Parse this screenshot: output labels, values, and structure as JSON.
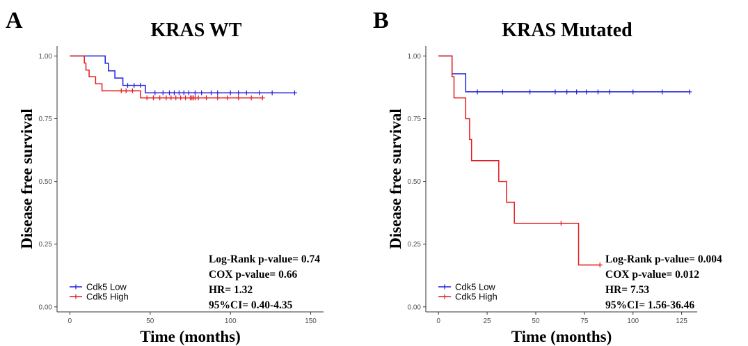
{
  "colors": {
    "low": "#1f1fdd",
    "high": "#e41a1c",
    "axis": "#333333",
    "text": "#000000"
  },
  "chart_data": [
    {
      "type": "line",
      "subtype": "kaplan-meier step",
      "panel_letter": "A",
      "title": "KRAS WT",
      "xlabel": "Time (months)",
      "ylabel": "Disease free survival",
      "xlim": [
        -8,
        158
      ],
      "ylim": [
        -0.02,
        1.04
      ],
      "x_ticks": [
        0,
        50,
        100,
        150
      ],
      "y_ticks": [
        0.0,
        0.25,
        0.5,
        0.75,
        1.0
      ],
      "y_tick_labels": [
        "0.00",
        "0.25",
        "0.50",
        "0.75",
        "1.00"
      ],
      "grid": false,
      "legend_position": "bottom-left",
      "stats": [
        "Log-Rank p-value= 0.74",
        "COX p-value= 0.66",
        "HR= 1.32",
        "95%CI= 0.40-4.35"
      ],
      "series": [
        {
          "name": "Cdk5 Low",
          "color": "#1f1fdd",
          "steps": [
            [
              0,
              1.0
            ],
            [
              22,
              1.0
            ],
            [
              22,
              0.971
            ],
            [
              24,
              0.971
            ],
            [
              24,
              0.941
            ],
            [
              28,
              0.941
            ],
            [
              28,
              0.912
            ],
            [
              33,
              0.912
            ],
            [
              33,
              0.883
            ],
            [
              47,
              0.883
            ],
            [
              47,
              0.853
            ],
            [
              140,
              0.853
            ]
          ],
          "censors": [
            [
              36,
              0.883
            ],
            [
              40,
              0.883
            ],
            [
              44,
              0.883
            ],
            [
              53,
              0.853
            ],
            [
              58,
              0.853
            ],
            [
              62,
              0.853
            ],
            [
              65,
              0.853
            ],
            [
              68,
              0.853
            ],
            [
              71,
              0.853
            ],
            [
              74,
              0.853
            ],
            [
              78,
              0.853
            ],
            [
              82,
              0.853
            ],
            [
              88,
              0.853
            ],
            [
              92,
              0.853
            ],
            [
              100,
              0.853
            ],
            [
              105,
              0.853
            ],
            [
              110,
              0.853
            ],
            [
              118,
              0.853
            ],
            [
              126,
              0.853
            ],
            [
              140,
              0.853
            ]
          ]
        },
        {
          "name": "Cdk5 High",
          "color": "#e41a1c",
          "steps": [
            [
              0,
              1.0
            ],
            [
              9,
              1.0
            ],
            [
              9,
              0.972
            ],
            [
              10,
              0.972
            ],
            [
              10,
              0.944
            ],
            [
              12,
              0.944
            ],
            [
              12,
              0.917
            ],
            [
              16,
              0.917
            ],
            [
              16,
              0.889
            ],
            [
              20,
              0.889
            ],
            [
              20,
              0.861
            ],
            [
              44,
              0.861
            ],
            [
              44,
              0.833
            ],
            [
              120,
              0.833
            ]
          ],
          "censors": [
            [
              32,
              0.861
            ],
            [
              35,
              0.861
            ],
            [
              39,
              0.861
            ],
            [
              48,
              0.833
            ],
            [
              52,
              0.833
            ],
            [
              56,
              0.833
            ],
            [
              60,
              0.833
            ],
            [
              63,
              0.833
            ],
            [
              66,
              0.833
            ],
            [
              69,
              0.833
            ],
            [
              72,
              0.833
            ],
            [
              75,
              0.833
            ],
            [
              76,
              0.833
            ],
            [
              77,
              0.833
            ],
            [
              78,
              0.833
            ],
            [
              80,
              0.833
            ],
            [
              85,
              0.833
            ],
            [
              92,
              0.833
            ],
            [
              98,
              0.833
            ],
            [
              105,
              0.833
            ],
            [
              113,
              0.833
            ],
            [
              120,
              0.833
            ]
          ]
        }
      ]
    },
    {
      "type": "line",
      "subtype": "kaplan-meier step",
      "panel_letter": "B",
      "title": "KRAS Mutated",
      "xlabel": "Time (months)",
      "ylabel": "Disease free survival",
      "xlim": [
        -6.5,
        133
      ],
      "ylim": [
        -0.02,
        1.04
      ],
      "x_ticks": [
        0,
        25,
        50,
        75,
        100,
        125
      ],
      "y_ticks": [
        0.0,
        0.25,
        0.5,
        0.75,
        1.0
      ],
      "y_tick_labels": [
        "0.00",
        "0.25",
        "0.50",
        "0.75",
        "1.00"
      ],
      "grid": false,
      "legend_position": "bottom-left",
      "stats": [
        "Log-Rank p-value= 0.004",
        "COX p-value= 0.012",
        "HR= 7.53",
        "95%CI= 1.56-36.46"
      ],
      "series": [
        {
          "name": "Cdk5 Low",
          "color": "#1f1fdd",
          "steps": [
            [
              0,
              1.0
            ],
            [
              7,
              1.0
            ],
            [
              7,
              0.929
            ],
            [
              14,
              0.929
            ],
            [
              14,
              0.857
            ],
            [
              129,
              0.857
            ]
          ],
          "censors": [
            [
              20,
              0.857
            ],
            [
              33,
              0.857
            ],
            [
              47,
              0.857
            ],
            [
              60,
              0.857
            ],
            [
              66,
              0.857
            ],
            [
              71,
              0.857
            ],
            [
              76,
              0.857
            ],
            [
              82,
              0.857
            ],
            [
              88,
              0.857
            ],
            [
              100,
              0.857
            ],
            [
              115,
              0.857
            ],
            [
              129,
              0.857
            ]
          ]
        },
        {
          "name": "Cdk5 High",
          "color": "#e41a1c",
          "steps": [
            [
              0,
              1.0
            ],
            [
              7,
              1.0
            ],
            [
              7,
              0.917
            ],
            [
              8,
              0.917
            ],
            [
              8,
              0.833
            ],
            [
              14,
              0.833
            ],
            [
              14,
              0.75
            ],
            [
              16,
              0.75
            ],
            [
              16,
              0.667
            ],
            [
              17,
              0.667
            ],
            [
              17,
              0.583
            ],
            [
              31,
              0.583
            ],
            [
              31,
              0.5
            ],
            [
              35,
              0.5
            ],
            [
              35,
              0.417
            ],
            [
              39,
              0.417
            ],
            [
              39,
              0.333
            ],
            [
              72,
              0.333
            ],
            [
              72,
              0.167
            ],
            [
              83,
              0.167
            ]
          ],
          "censors": [
            [
              63,
              0.333
            ],
            [
              83,
              0.167
            ]
          ]
        }
      ]
    }
  ]
}
